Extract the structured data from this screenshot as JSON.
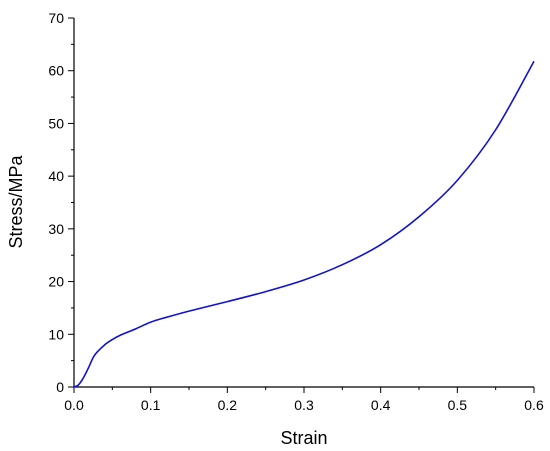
{
  "chart_data": {
    "type": "line",
    "title": "",
    "xlabel": "Strain",
    "ylabel": "Stress/MPa",
    "xlim": [
      0.0,
      0.6
    ],
    "ylim": [
      0,
      70
    ],
    "xticks": [
      0.0,
      0.1,
      0.2,
      0.3,
      0.4,
      0.5,
      0.6
    ],
    "xtick_labels": [
      "0.0",
      "0.1",
      "0.2",
      "0.3",
      "0.4",
      "0.5",
      "0.6"
    ],
    "yticks": [
      0,
      10,
      20,
      30,
      40,
      50,
      60,
      70
    ],
    "ytick_labels": [
      "0",
      "10",
      "20",
      "30",
      "40",
      "50",
      "60",
      "70"
    ],
    "grid": false,
    "series": [
      {
        "color": "#1010d8",
        "x": [
          0.0,
          0.005,
          0.01,
          0.015,
          0.02,
          0.025,
          0.03,
          0.04,
          0.05,
          0.06,
          0.08,
          0.1,
          0.12,
          0.15,
          0.2,
          0.25,
          0.3,
          0.35,
          0.4,
          0.45,
          0.5,
          0.55,
          0.6
        ],
        "y": [
          0,
          0.3,
          1.2,
          2.5,
          4.0,
          5.6,
          6.6,
          8.0,
          9.0,
          9.8,
          11.0,
          12.3,
          13.2,
          14.4,
          16.2,
          18.1,
          20.3,
          23.2,
          27.0,
          32.3,
          39.2,
          48.8,
          61.8
        ]
      }
    ]
  }
}
